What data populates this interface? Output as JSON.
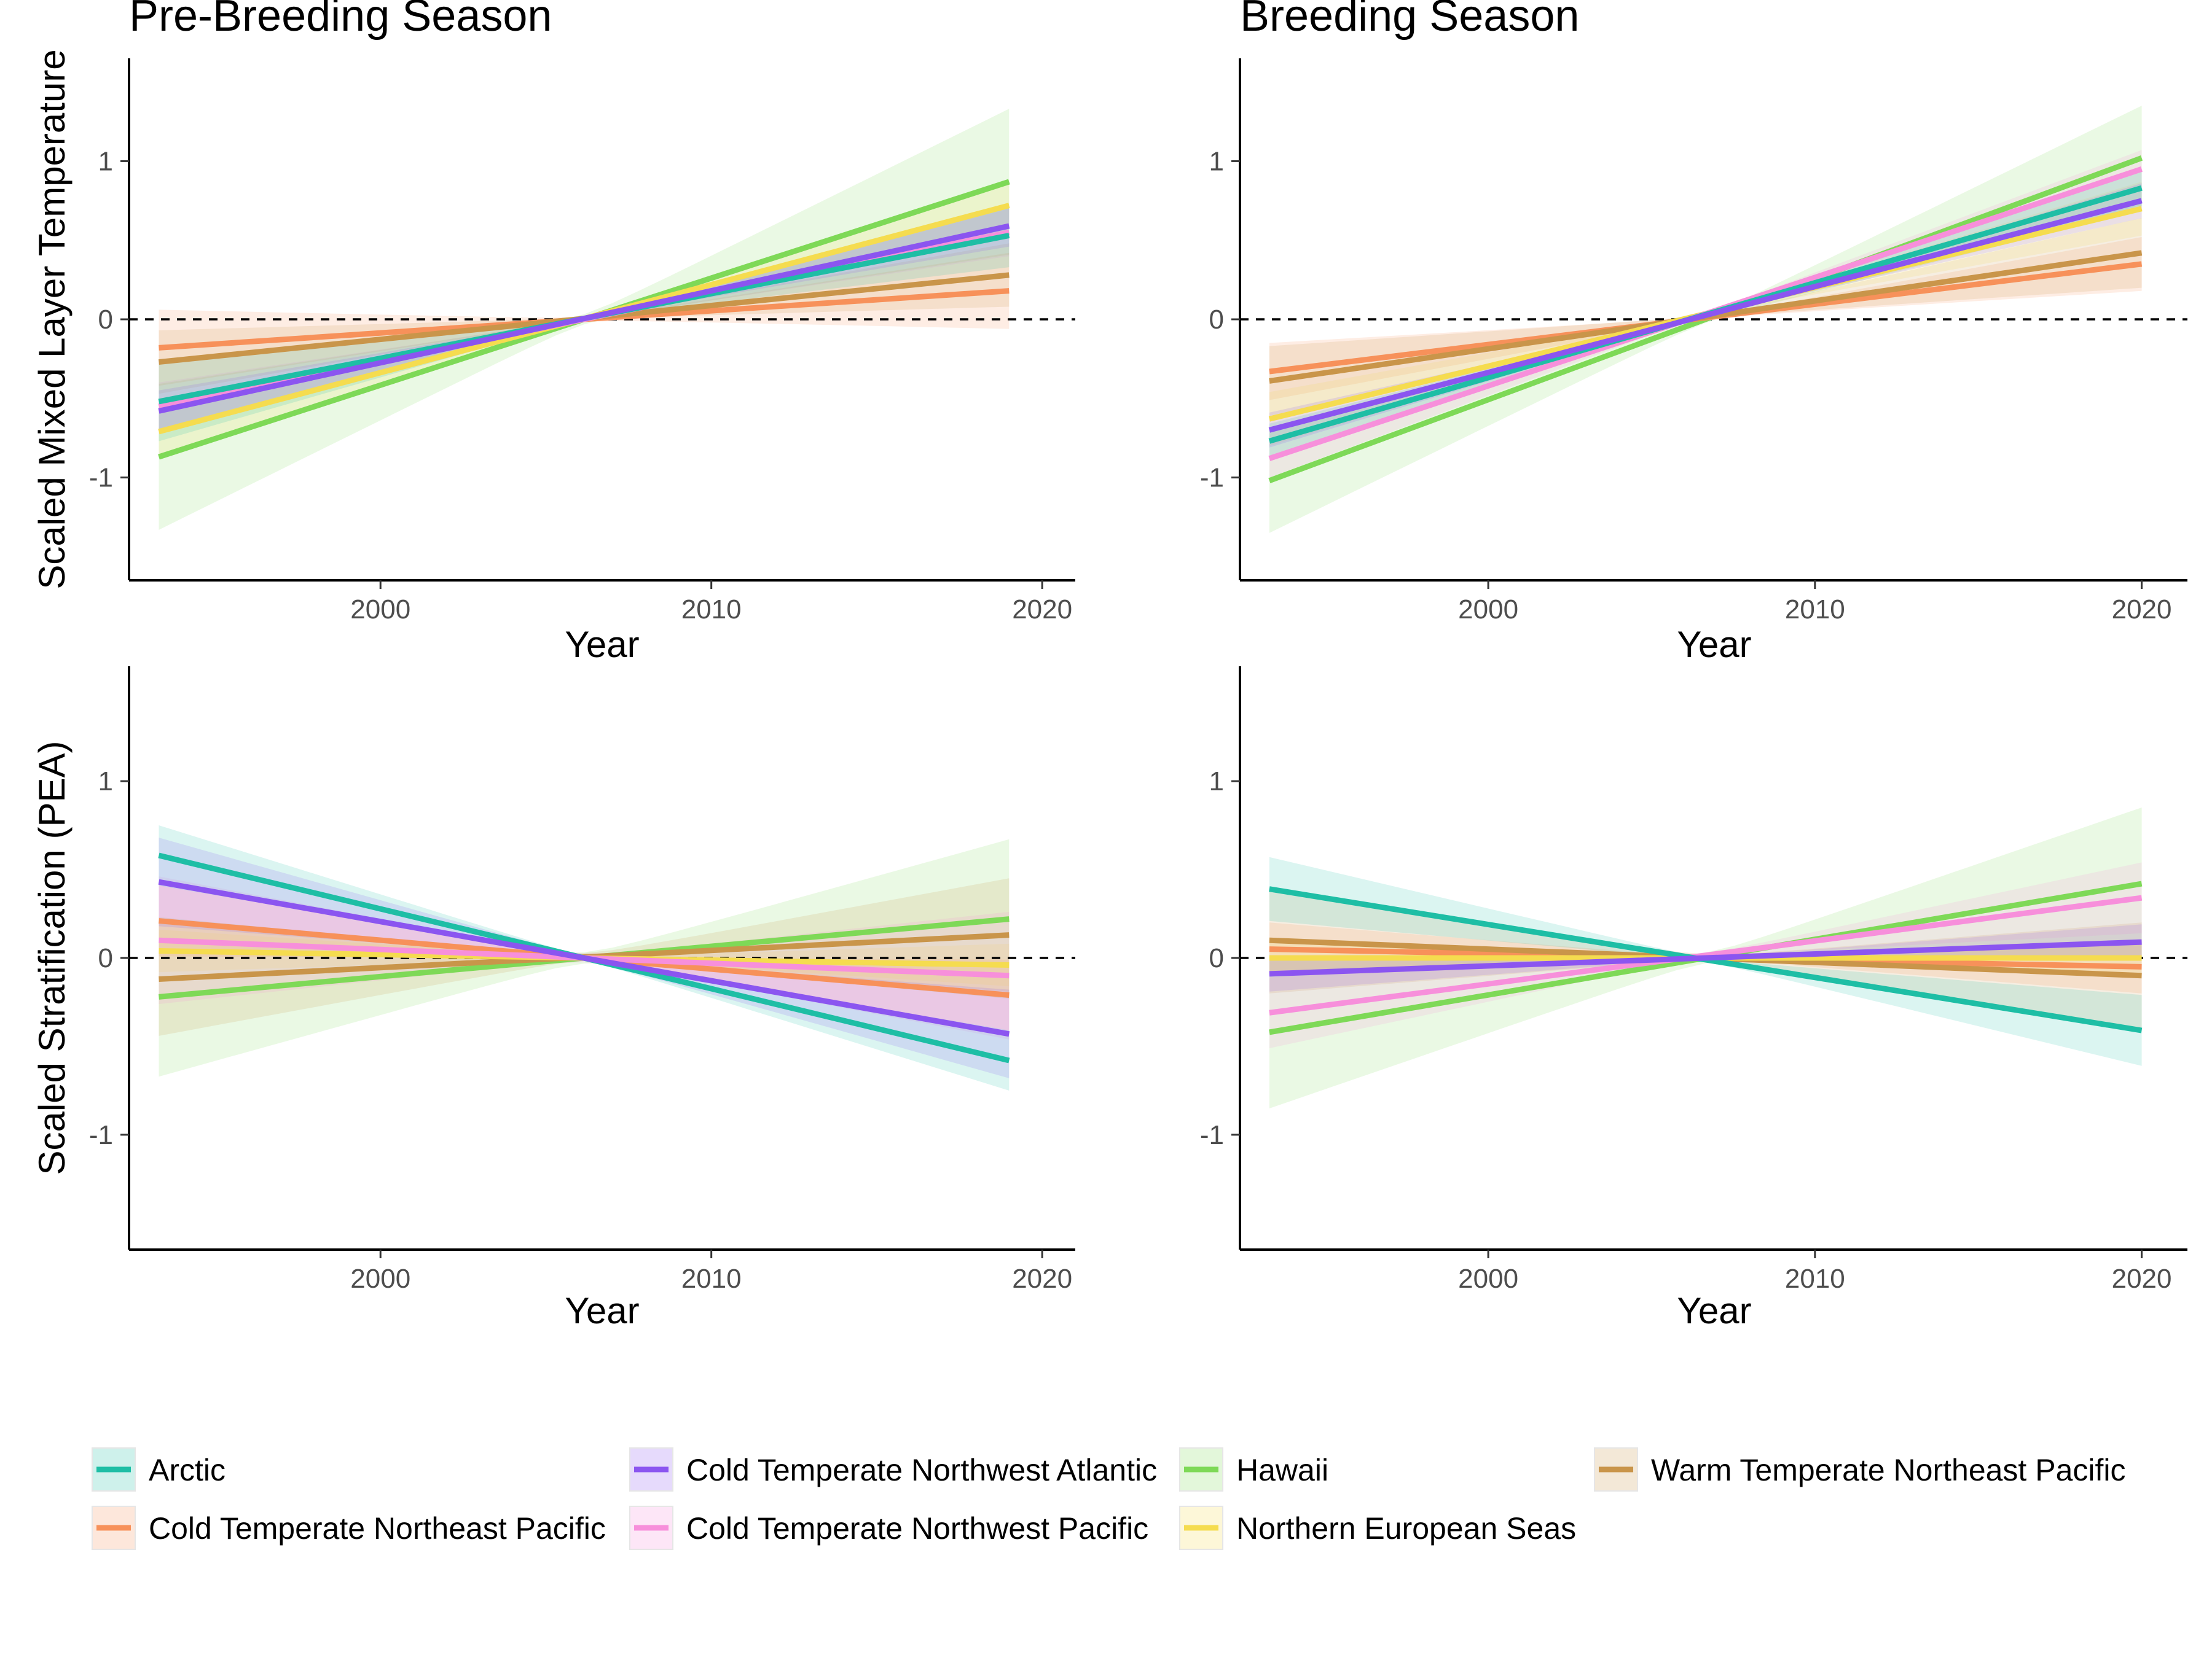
{
  "panel_titles": [
    "Pre-Breeding Season",
    "Breeding Season"
  ],
  "y_titles": [
    "Scaled Mixed Layer Temperature",
    "Scaled Stratification (PEA)"
  ],
  "x_title": "Year",
  "legend": [
    {
      "name": "Arctic",
      "color": "#1ebea5"
    },
    {
      "name": "Cold Temperate Northwest Atlantic",
      "color": "#8b55f0"
    },
    {
      "name": "Hawaii",
      "color": "#7ed957"
    },
    {
      "name": "Warm Temperate Northeast Pacific",
      "color": "#c9954a"
    },
    {
      "name": "Cold Temperate Northeast Pacific",
      "color": "#f7915a"
    },
    {
      "name": "Cold Temperate Northwest Pacific",
      "color": "#f78fdb"
    },
    {
      "name": "Northern European Seas",
      "color": "#f5dc4f"
    }
  ],
  "chart_data": [
    {
      "type": "line",
      "title": "Pre-Breeding Season",
      "xlabel": "Year",
      "ylabel": "Scaled Mixed Layer Temperature",
      "xlim": [
        1992.4,
        2021
      ],
      "ylim": [
        -1.65,
        1.65
      ],
      "xticks": [
        "2000",
        "2010",
        "2020"
      ],
      "yticks": [
        "-1",
        "0",
        "1"
      ],
      "reference_line": 0,
      "grid": false,
      "series": [
        {
          "name": "Arctic",
          "x": [
            1993.3,
            2019
          ],
          "y": [
            -0.52,
            0.53
          ],
          "ci_half_start": 0.25,
          "ci_half_end": 0.2
        },
        {
          "name": "Cold Temperate Northeast Pacific",
          "x": [
            1993.3,
            2019
          ],
          "y": [
            -0.18,
            0.18
          ],
          "ci_half_start": 0.24,
          "ci_half_end": 0.24
        },
        {
          "name": "Cold Temperate Northwest Atlantic",
          "x": [
            1993.3,
            2019
          ],
          "y": [
            -0.58,
            0.59
          ],
          "ci_half_start": 0.13,
          "ci_half_end": 0.13
        },
        {
          "name": "Cold Temperate Northwest Pacific",
          "x": [
            1993.3,
            2019
          ],
          "y": [
            -0.55,
            0.55
          ],
          "ci_half_start": 0.15,
          "ci_half_end": 0.15
        },
        {
          "name": "Northern European Seas",
          "x": [
            1993.3,
            2019
          ],
          "y": [
            -0.71,
            0.72
          ],
          "ci_half_start": 0.15,
          "ci_half_end": 0.15
        },
        {
          "name": "Warm Temperate Northeast Pacific",
          "x": [
            1993.3,
            2019
          ],
          "y": [
            -0.27,
            0.28
          ],
          "ci_half_start": 0.2,
          "ci_half_end": 0.2
        },
        {
          "name": "Hawaii",
          "x": [
            1993.3,
            2019
          ],
          "y": [
            -0.87,
            0.87
          ],
          "ci_half_start": 0.46,
          "ci_half_end": 0.46
        }
      ]
    },
    {
      "type": "line",
      "title": "Breeding Season",
      "xlabel": "Year",
      "ylabel": "",
      "xlim": [
        1992.4,
        2021.4
      ],
      "ylim": [
        -1.65,
        1.65
      ],
      "xticks": [
        "2000",
        "2010",
        "2020"
      ],
      "yticks": [
        "-1",
        "0",
        "1"
      ],
      "reference_line": 0,
      "grid": false,
      "series": [
        {
          "name": "Arctic",
          "x": [
            1993.3,
            2020
          ],
          "y": [
            -0.77,
            0.83
          ],
          "ci_half_start": 0.11,
          "ci_half_end": 0.11
        },
        {
          "name": "Cold Temperate Northeast Pacific",
          "x": [
            1993.3,
            2020
          ],
          "y": [
            -0.33,
            0.35
          ],
          "ci_half_start": 0.18,
          "ci_half_end": 0.17
        },
        {
          "name": "Cold Temperate Northwest Atlantic",
          "x": [
            1993.3,
            2020
          ],
          "y": [
            -0.7,
            0.75
          ],
          "ci_half_start": 0.11,
          "ci_half_end": 0.11
        },
        {
          "name": "Cold Temperate Northwest Pacific",
          "x": [
            1993.3,
            2020
          ],
          "y": [
            -0.88,
            0.95
          ],
          "ci_half_start": 0.12,
          "ci_half_end": 0.12
        },
        {
          "name": "Northern European Seas",
          "x": [
            1993.3,
            2020
          ],
          "y": [
            -0.63,
            0.7
          ],
          "ci_half_start": 0.17,
          "ci_half_end": 0.17
        },
        {
          "name": "Warm Temperate Northeast Pacific",
          "x": [
            1993.3,
            2020
          ],
          "y": [
            -0.39,
            0.42
          ],
          "ci_half_start": 0.22,
          "ci_half_end": 0.22
        },
        {
          "name": "Hawaii",
          "x": [
            1993.3,
            2020
          ],
          "y": [
            -1.02,
            1.02
          ],
          "ci_half_start": 0.33,
          "ci_half_end": 0.33
        }
      ]
    },
    {
      "type": "line",
      "title": "",
      "xlabel": "Year",
      "ylabel": "Scaled Stratification (PEA)",
      "xlim": [
        1992.4,
        2021
      ],
      "ylim": [
        -1.65,
        1.65
      ],
      "xticks": [
        "2000",
        "2010",
        "2020"
      ],
      "yticks": [
        "-1",
        "0",
        "1"
      ],
      "reference_line": 0,
      "grid": false,
      "series": [
        {
          "name": "Arctic",
          "x": [
            1993.3,
            2019
          ],
          "y": [
            0.58,
            -0.58
          ],
          "ci_half_start": 0.17,
          "ci_half_end": 0.17
        },
        {
          "name": "Cold Temperate Northeast Pacific",
          "x": [
            1993.3,
            2019
          ],
          "y": [
            0.21,
            -0.21
          ],
          "ci_half_start": 0.2,
          "ci_half_end": 0.2
        },
        {
          "name": "Cold Temperate Northwest Atlantic",
          "x": [
            1993.3,
            2019
          ],
          "y": [
            0.43,
            -0.43
          ],
          "ci_half_start": 0.25,
          "ci_half_end": 0.25
        },
        {
          "name": "Cold Temperate Northwest Pacific",
          "x": [
            1993.3,
            2019
          ],
          "y": [
            0.1,
            -0.1
          ],
          "ci_half_start": 0.36,
          "ci_half_end": 0.36
        },
        {
          "name": "Northern European Seas",
          "x": [
            1993.3,
            2019
          ],
          "y": [
            0.04,
            -0.04
          ],
          "ci_half_start": 0.12,
          "ci_half_end": 0.12
        },
        {
          "name": "Warm Temperate Northeast Pacific",
          "x": [
            1993.3,
            2019
          ],
          "y": [
            -0.12,
            0.13
          ],
          "ci_half_start": 0.32,
          "ci_half_end": 0.32
        },
        {
          "name": "Hawaii",
          "x": [
            1993.3,
            2019
          ],
          "y": [
            -0.22,
            0.22
          ],
          "ci_half_start": 0.45,
          "ci_half_end": 0.45
        }
      ]
    },
    {
      "type": "line",
      "title": "",
      "xlabel": "Year",
      "ylabel": "",
      "xlim": [
        1992.4,
        2021.4
      ],
      "ylim": [
        -1.65,
        1.65
      ],
      "xticks": [
        "2000",
        "2010",
        "2020"
      ],
      "yticks": [
        "-1",
        "0",
        "1"
      ],
      "reference_line": 0,
      "grid": false,
      "series": [
        {
          "name": "Arctic",
          "x": [
            1993.3,
            2020
          ],
          "y": [
            0.39,
            -0.41
          ],
          "ci_half_start": 0.18,
          "ci_half_end": 0.2
        },
        {
          "name": "Cold Temperate Northeast Pacific",
          "x": [
            1993.3,
            2020
          ],
          "y": [
            0.05,
            -0.05
          ],
          "ci_half_start": 0.15,
          "ci_half_end": 0.15
        },
        {
          "name": "Cold Temperate Northwest Atlantic",
          "x": [
            1993.3,
            2020
          ],
          "y": [
            -0.09,
            0.09
          ],
          "ci_half_start": 0.1,
          "ci_half_end": 0.1
        },
        {
          "name": "Cold Temperate Northwest Pacific",
          "x": [
            1993.3,
            2020
          ],
          "y": [
            -0.31,
            0.34
          ],
          "ci_half_start": 0.2,
          "ci_half_end": 0.2
        },
        {
          "name": "Northern European Seas",
          "x": [
            1993.3,
            2020
          ],
          "y": [
            0.0,
            0.0
          ],
          "ci_half_start": 0.1,
          "ci_half_end": 0.1
        },
        {
          "name": "Warm Temperate Northeast Pacific",
          "x": [
            1993.3,
            2020
          ],
          "y": [
            0.1,
            -0.1
          ],
          "ci_half_start": 0.3,
          "ci_half_end": 0.3
        },
        {
          "name": "Hawaii",
          "x": [
            1993.3,
            2020
          ],
          "y": [
            -0.42,
            0.42
          ],
          "ci_half_start": 0.43,
          "ci_half_end": 0.43
        }
      ]
    }
  ]
}
